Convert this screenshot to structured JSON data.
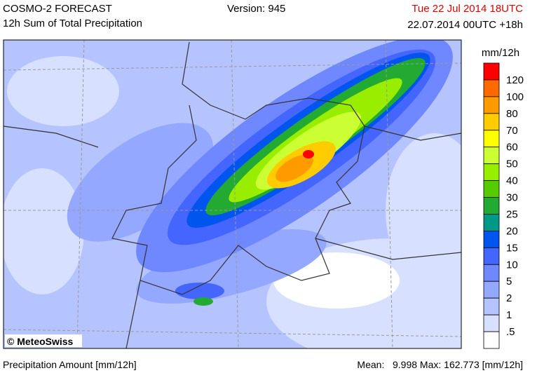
{
  "header": {
    "title": "COSMO-2 FORECAST",
    "subtitle": "12h Sum of Total Precipitation",
    "version": "Version: 945",
    "valid_time": "Tue 22 Jul 2014 18UTC",
    "run": "22.07.2014 00UTC +18h"
  },
  "map": {
    "credit": "© MeteoSwiss"
  },
  "colorbar": {
    "title": "mm/12h",
    "colors": [
      "#ff0000",
      "#ff6a00",
      "#ff9a00",
      "#ffcc00",
      "#ffff00",
      "#ccff33",
      "#99ee00",
      "#55cc00",
      "#22aa33",
      "#009988",
      "#0055ee",
      "#4466ff",
      "#7088ff",
      "#95a8ff",
      "#b5c4ff",
      "#d8e0ff",
      "#ffffff"
    ],
    "labels": [
      "120",
      "100",
      "80",
      "70",
      "60",
      "50",
      "40",
      "30",
      "25",
      "20",
      "15",
      "10",
      "5",
      "2",
      "1",
      ".5"
    ]
  },
  "footer": {
    "left": "Precipitation Amount [mm/12h]",
    "right": "Mean:   9.998 Max: 162.773 [mm/12h]"
  }
}
